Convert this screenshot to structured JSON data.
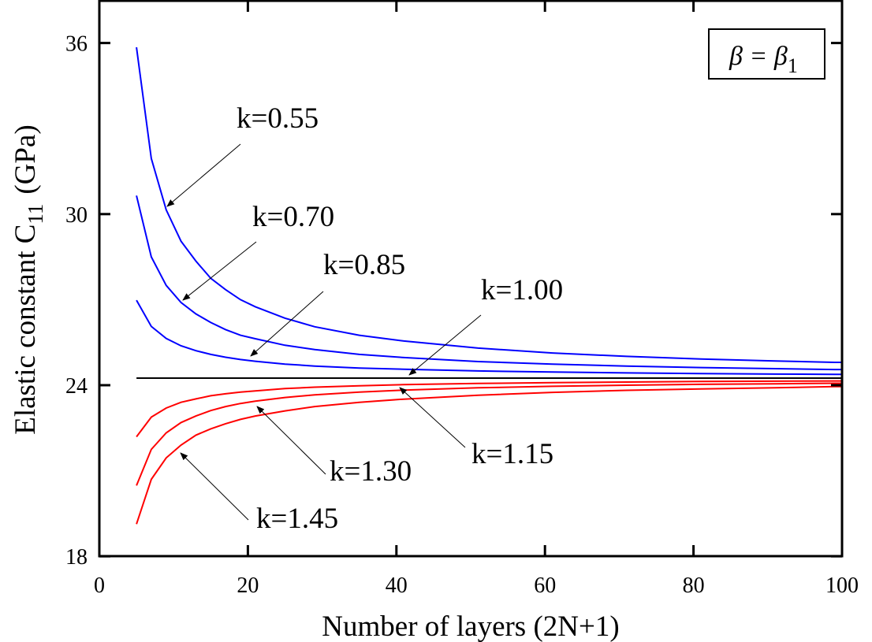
{
  "chart_data": {
    "type": "line",
    "title": "",
    "xlabel": "Number of layers (2N+1)",
    "ylabel": "Elastic constant C",
    "ylabel_subscript": "11",
    "ylabel_unit": "(GPa)",
    "xlim": [
      0,
      100
    ],
    "ylim": [
      18,
      36
    ],
    "xticks": [
      "0",
      "20",
      "40",
      "60",
      "80",
      "100"
    ],
    "yticks": [
      "18",
      "24",
      "30",
      "36"
    ],
    "grid": false,
    "legend": {
      "placement": "top-right",
      "text": "β = β",
      "subscript": "1"
    },
    "x": [
      5,
      7,
      9,
      11,
      13,
      15,
      17,
      19,
      21,
      25,
      29,
      35,
      41,
      51,
      61,
      71,
      81,
      91,
      99
    ],
    "series": [
      {
        "name": "k=0.55",
        "color": "#0000ff",
        "values": [
          35.85,
          31.95,
          30.15,
          29.05,
          28.35,
          27.75,
          27.35,
          27.0,
          26.75,
          26.35,
          26.05,
          25.75,
          25.55,
          25.3,
          25.13,
          25.01,
          24.92,
          24.85,
          24.8
        ]
      },
      {
        "name": "k=0.70",
        "color": "#0000ff",
        "values": [
          30.65,
          28.5,
          27.5,
          26.9,
          26.5,
          26.2,
          25.95,
          25.75,
          25.63,
          25.4,
          25.25,
          25.08,
          24.97,
          24.83,
          24.74,
          24.67,
          24.62,
          24.58,
          24.55
        ]
      },
      {
        "name": "k=0.85",
        "color": "#0000ff",
        "values": [
          26.98,
          26.06,
          25.64,
          25.38,
          25.21,
          25.08,
          24.98,
          24.9,
          24.84,
          24.74,
          24.67,
          24.6,
          24.56,
          24.5,
          24.46,
          24.43,
          24.41,
          24.39,
          24.38
        ]
      },
      {
        "name": "k=1.00",
        "color": "#000000",
        "values": [
          24.25,
          24.25,
          24.25,
          24.25,
          24.25,
          24.25,
          24.25,
          24.25,
          24.25,
          24.25,
          24.25,
          24.25,
          24.25,
          24.25,
          24.25,
          24.25,
          24.25,
          24.25,
          24.25
        ]
      },
      {
        "name": "k=1.15",
        "color": "#ff0000",
        "values": [
          22.19,
          22.88,
          23.2,
          23.4,
          23.52,
          23.63,
          23.7,
          23.76,
          23.8,
          23.88,
          23.93,
          23.98,
          24.02,
          24.06,
          24.09,
          24.11,
          24.13,
          24.14,
          24.15
        ]
      },
      {
        "name": "k=1.30",
        "color": "#ff0000",
        "values": [
          20.48,
          21.75,
          22.33,
          22.69,
          22.92,
          23.11,
          23.25,
          23.36,
          23.44,
          23.57,
          23.66,
          23.76,
          23.83,
          23.91,
          23.96,
          24.0,
          24.03,
          24.05,
          24.07
        ]
      },
      {
        "name": "k=1.45",
        "color": "#ff0000",
        "values": [
          19.13,
          20.7,
          21.45,
          21.9,
          22.25,
          22.47,
          22.65,
          22.8,
          22.92,
          23.1,
          23.25,
          23.4,
          23.51,
          23.65,
          23.75,
          23.82,
          23.87,
          23.91,
          23.95
        ]
      }
    ],
    "annotations": [
      "k=0.55",
      "k=0.70",
      "k=0.85",
      "k=1.00",
      "k=1.15",
      "k=1.30",
      "k=1.45"
    ]
  }
}
